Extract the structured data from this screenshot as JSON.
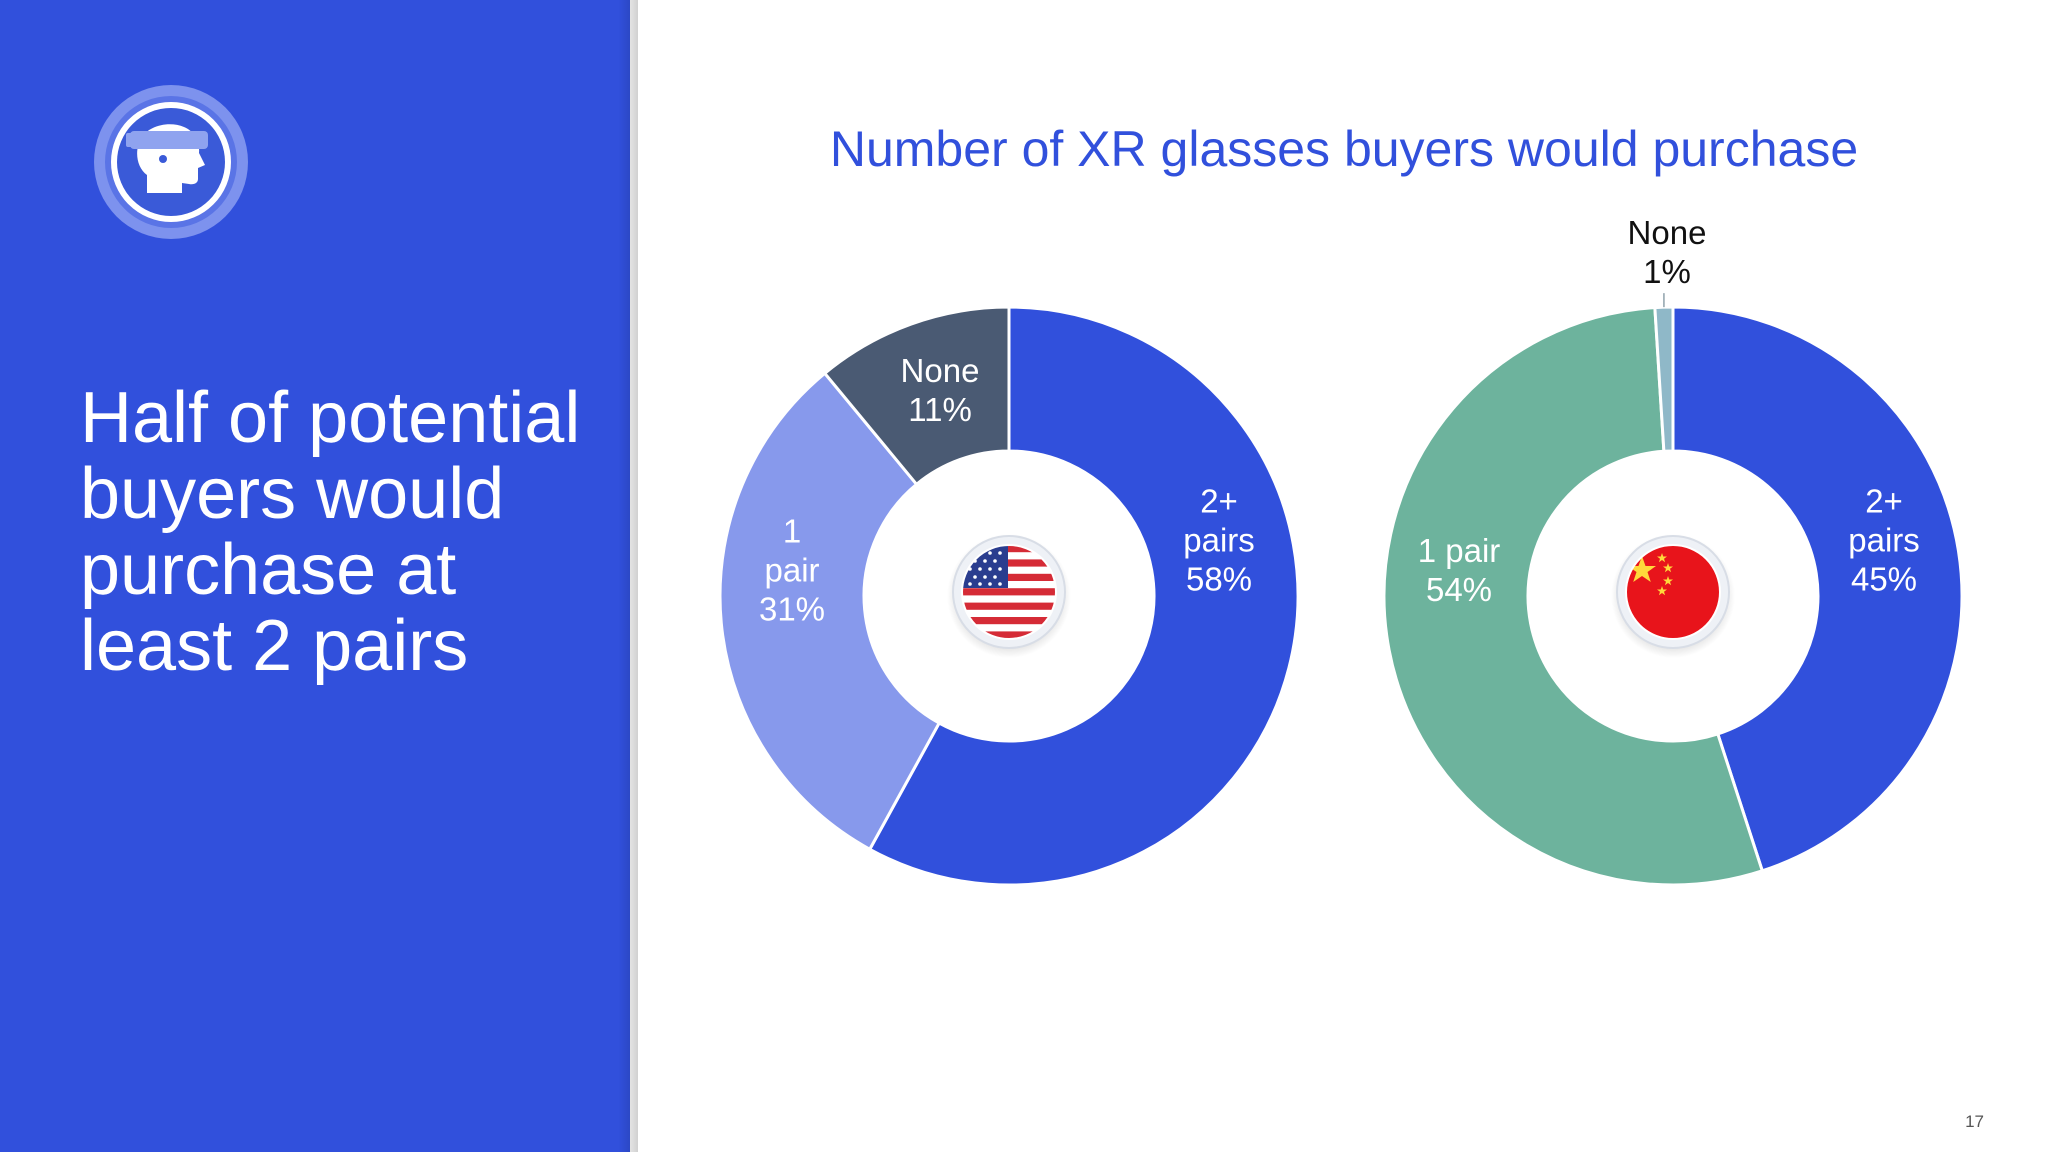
{
  "slide": {
    "headline": "Half of potential buyers would purchase at least 2 pairs",
    "page_number": "17",
    "logo_icon": "vr-headset-head-icon"
  },
  "colors": {
    "brand": "#3150dc",
    "two_plus": "#3150dc",
    "one_pair_us": "#8799ec",
    "none_us": "#4a5a73",
    "one_pair_cn": "#6db39d",
    "none_cn": "#8fb8c8"
  },
  "chart_data": [
    {
      "type": "pie",
      "title": "Number of XR glasses buyers would purchase",
      "center_icon": "us-flag-icon",
      "categories": [
        "2+ pairs",
        "1 pair",
        "None"
      ],
      "values": [
        58,
        31,
        11
      ],
      "labels": [
        [
          "2+",
          "pairs",
          "58%"
        ],
        [
          "1",
          "pair",
          "31%"
        ],
        [
          "None",
          "11%"
        ]
      ]
    },
    {
      "type": "pie",
      "center_icon": "china-flag-icon",
      "categories": [
        "2+ pairs",
        "1 pair",
        "None"
      ],
      "values": [
        45,
        54,
        1
      ],
      "labels": [
        [
          "2+",
          "pairs",
          "45%"
        ],
        [
          "1 pair",
          "54%"
        ],
        [
          "None",
          "1%"
        ]
      ]
    }
  ]
}
